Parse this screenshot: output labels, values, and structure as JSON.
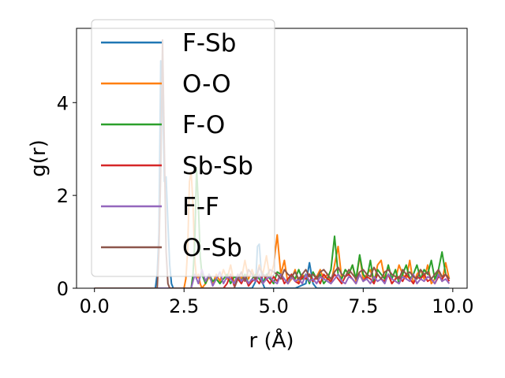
{
  "chart_data": {
    "type": "line",
    "title": "",
    "xlabel": "r (Å)",
    "ylabel": "g(r)",
    "xlim": [
      -0.5,
      10.4
    ],
    "ylim": [
      0,
      5.6
    ],
    "xticks": [
      0.0,
      2.5,
      5.0,
      7.5,
      10.0
    ],
    "xtick_labels": [
      "0.0",
      "2.5",
      "5.0",
      "7.5",
      "10.0"
    ],
    "yticks": [
      0,
      2,
      4
    ],
    "ytick_labels": [
      "0",
      "2",
      "4"
    ],
    "legend_position": "top-left",
    "grid": false,
    "series": [
      {
        "name": "F-Sb",
        "color": "#1f77b4",
        "x": [
          0.0,
          1.7,
          1.75,
          1.8,
          1.85,
          1.9,
          1.95,
          2.0,
          2.05,
          2.1,
          2.15,
          2.2,
          3.5,
          4.4,
          4.5,
          4.55,
          4.6,
          4.65,
          4.7,
          4.75,
          5.6,
          5.9,
          6.0,
          6.1,
          6.2,
          9.9
        ],
        "y": [
          0,
          0,
          0.3,
          1.2,
          4.9,
          4.3,
          2.3,
          2.4,
          1.4,
          0.5,
          0.1,
          0,
          0,
          0,
          0.15,
          0.9,
          0.95,
          0.4,
          0.1,
          0,
          0,
          0.1,
          0.55,
          0.1,
          0,
          0
        ]
      },
      {
        "name": "O-O",
        "color": "#ff7f0e",
        "x": [
          0.0,
          2.5,
          2.55,
          2.6,
          2.65,
          2.7,
          2.75,
          2.8,
          2.85,
          2.9,
          2.95,
          3.0,
          3.1,
          3.2,
          3.3,
          3.4,
          3.5,
          3.6,
          3.7,
          3.8,
          3.9,
          4.0,
          4.1,
          4.2,
          4.3,
          4.4,
          4.5,
          4.6,
          4.7,
          4.8,
          4.9,
          5.0,
          5.1,
          5.2,
          5.3,
          5.4,
          5.5,
          5.6,
          5.7,
          5.8,
          5.9,
          6.0,
          6.1,
          6.2,
          6.3,
          6.4,
          6.5,
          6.6,
          6.7,
          6.8,
          6.9,
          7.0,
          7.1,
          7.2,
          7.3,
          7.4,
          7.5,
          7.6,
          7.7,
          7.8,
          7.9,
          8.0,
          8.1,
          8.2,
          8.3,
          8.4,
          8.5,
          8.6,
          8.7,
          8.8,
          8.9,
          9.0,
          9.1,
          9.2,
          9.3,
          9.4,
          9.5,
          9.6,
          9.7,
          9.8,
          9.9
        ],
        "y": [
          0,
          0,
          0.2,
          0.8,
          2.3,
          2.5,
          1.8,
          0.6,
          0.2,
          0.3,
          0.1,
          0,
          0.1,
          0.25,
          0.1,
          0.3,
          0.15,
          0.4,
          0.2,
          0.5,
          0.1,
          0.3,
          0.2,
          0.6,
          0.2,
          0.4,
          0.15,
          0.5,
          0.3,
          0.7,
          0.2,
          0.5,
          1.15,
          0.3,
          0.6,
          0.1,
          0.2,
          0.4,
          0.1,
          0.3,
          0.2,
          0.3,
          0.15,
          0.25,
          0.4,
          0.2,
          0.3,
          0.1,
          0.5,
          0.9,
          0.2,
          0.4,
          0.3,
          0.5,
          0.15,
          0.7,
          0.2,
          0.3,
          0.4,
          0.1,
          0.5,
          0.6,
          0.2,
          0.3,
          0.1,
          0.2,
          0.5,
          0.3,
          0.2,
          0.6,
          0.1,
          0.3,
          0.4,
          0.2,
          0.5,
          0.1,
          0.2,
          0.35,
          0.15,
          0.55,
          0.2
        ]
      },
      {
        "name": "F-O",
        "color": "#2ca02c",
        "x": [
          0.0,
          2.7,
          2.75,
          2.8,
          2.85,
          2.9,
          2.95,
          3.0,
          3.1,
          3.2,
          3.3,
          3.4,
          3.5,
          3.6,
          3.7,
          3.8,
          3.9,
          4.0,
          4.1,
          4.2,
          4.3,
          4.4,
          4.5,
          4.6,
          4.7,
          4.8,
          4.9,
          5.0,
          5.1,
          5.2,
          5.3,
          5.4,
          5.5,
          5.6,
          5.7,
          5.8,
          5.9,
          6.0,
          6.1,
          6.2,
          6.3,
          6.4,
          6.5,
          6.6,
          6.7,
          6.8,
          6.9,
          7.0,
          7.1,
          7.2,
          7.3,
          7.4,
          7.5,
          7.6,
          7.7,
          7.8,
          7.9,
          8.0,
          8.1,
          8.2,
          8.3,
          8.4,
          8.5,
          8.6,
          8.7,
          8.8,
          8.9,
          9.0,
          9.1,
          9.2,
          9.3,
          9.4,
          9.5,
          9.6,
          9.7,
          9.8,
          9.9
        ],
        "y": [
          0,
          0,
          0.3,
          1.0,
          2.6,
          1.8,
          0.7,
          0.3,
          0.1,
          0.3,
          0.15,
          0.2,
          0.1,
          0.2,
          0.3,
          0.1,
          0.25,
          0.2,
          0.15,
          0.3,
          0.1,
          0.2,
          0.3,
          0.2,
          0.1,
          0.3,
          0.2,
          0.1,
          0.35,
          0.3,
          0.2,
          0.1,
          0.3,
          0.2,
          0.4,
          0.2,
          0.3,
          0.1,
          0.35,
          0.2,
          0.3,
          0.1,
          0.2,
          0.4,
          1.12,
          0.3,
          0.2,
          0.4,
          0.3,
          0.5,
          0.2,
          0.72,
          0.3,
          0.2,
          0.6,
          0.1,
          0.4,
          0.3,
          0.2,
          0.5,
          0.2,
          0.4,
          0.1,
          0.3,
          0.5,
          0.2,
          0.3,
          0.5,
          0.2,
          0.4,
          0.3,
          0.6,
          0.2,
          0.4,
          0.78,
          0.3,
          0.2
        ]
      },
      {
        "name": "Sb-Sb",
        "color": "#d62728",
        "x": [
          0.0,
          3.6,
          3.7,
          3.8,
          3.9,
          4.0,
          4.1,
          4.2,
          4.3,
          4.4,
          4.5,
          4.6,
          4.7,
          4.8,
          4.9,
          5.0,
          5.1,
          5.2,
          5.3,
          5.4,
          5.5,
          5.6,
          5.7,
          5.8,
          5.9,
          6.0,
          6.1,
          6.2,
          6.3,
          6.4,
          6.5,
          6.6,
          6.7,
          6.8,
          6.9,
          7.0,
          7.1,
          7.2,
          7.3,
          7.4,
          7.5,
          7.6,
          7.7,
          7.8,
          7.9,
          8.0,
          8.1,
          8.2,
          8.3,
          8.4,
          8.5,
          8.6,
          8.7,
          8.8,
          8.9,
          9.0,
          9.1,
          9.2,
          9.3,
          9.4,
          9.5,
          9.6,
          9.7,
          9.8,
          9.9
        ],
        "y": [
          0,
          0,
          0.1,
          0.3,
          0.05,
          0.2,
          0.1,
          0.25,
          0.05,
          0.15,
          0.2,
          0.1,
          0.3,
          0.2,
          0.1,
          0.25,
          0.15,
          0.3,
          0.1,
          0.2,
          0.3,
          0.15,
          0.1,
          0.25,
          0.2,
          0.3,
          0.15,
          0.25,
          0.1,
          0.3,
          0.2,
          0.15,
          0.3,
          0.2,
          0.1,
          0.25,
          0.3,
          0.2,
          0.1,
          0.3,
          0.15,
          0.25,
          0.2,
          0.1,
          0.3,
          0.2,
          0.15,
          0.3,
          0.1,
          0.2,
          0.25,
          0.15,
          0.3,
          0.2,
          0.1,
          0.25,
          0.2,
          0.3,
          0.15,
          0.2,
          0.1,
          0.25,
          0.2,
          0.3,
          0.15
        ]
      },
      {
        "name": "F-F",
        "color": "#9467bd",
        "x": [
          0.0,
          2.7,
          2.8,
          2.9,
          3.0,
          3.1,
          3.2,
          3.3,
          3.4,
          3.5,
          3.6,
          3.7,
          3.8,
          3.9,
          4.0,
          4.1,
          4.2,
          4.3,
          4.4,
          4.5,
          4.6,
          4.7,
          4.8,
          4.9,
          5.0,
          5.1,
          5.2,
          5.3,
          5.4,
          5.5,
          5.6,
          5.7,
          5.8,
          5.9,
          6.0,
          6.1,
          6.2,
          6.3,
          6.4,
          6.5,
          6.6,
          6.7,
          6.8,
          6.9,
          7.0,
          7.1,
          7.2,
          7.3,
          7.4,
          7.5,
          7.6,
          7.7,
          7.8,
          7.9,
          8.0,
          8.1,
          8.2,
          8.3,
          8.4,
          8.5,
          8.6,
          8.7,
          8.8,
          8.9,
          9.0,
          9.1,
          9.2,
          9.3,
          9.4,
          9.5,
          9.6,
          9.7,
          9.8,
          9.9
        ],
        "y": [
          0,
          0,
          0.3,
          0.1,
          0.4,
          0.15,
          0.3,
          0.05,
          0.2,
          0.35,
          0.1,
          0.25,
          0.2,
          0.1,
          0.3,
          0.15,
          0.25,
          0.1,
          0.2,
          0.15,
          0.3,
          0.1,
          0.2,
          0.25,
          0.15,
          0.1,
          0.3,
          0.2,
          0.1,
          0.25,
          0.15,
          0.2,
          0.1,
          0.3,
          0.15,
          0.2,
          0.1,
          0.25,
          0.2,
          0.15,
          0.1,
          0.2,
          0.3,
          0.15,
          0.1,
          0.25,
          0.2,
          0.1,
          0.3,
          0.15,
          0.2,
          0.1,
          0.25,
          0.15,
          0.2,
          0.1,
          0.3,
          0.2,
          0.15,
          0.1,
          0.25,
          0.2,
          0.15,
          0.3,
          0.1,
          0.2,
          0.15,
          0.25,
          0.2,
          0.1,
          0.3,
          0.15,
          0.2,
          0.1
        ]
      },
      {
        "name": "O-Sb",
        "color": "#8c564b",
        "x": [
          0.0,
          1.75,
          1.8,
          1.85,
          1.9,
          1.95,
          2.0,
          2.05,
          2.1,
          3.9,
          4.0,
          4.1,
          4.2,
          4.3,
          4.4,
          4.5,
          4.6,
          4.7,
          4.8,
          4.9,
          5.0,
          5.1,
          5.2,
          5.3,
          5.4,
          5.5,
          5.6,
          5.7,
          5.8,
          5.9,
          6.0,
          6.1,
          6.2,
          6.3,
          6.4,
          6.5,
          6.6,
          6.7,
          6.8,
          6.9,
          7.0,
          7.1,
          7.2,
          7.3,
          7.4,
          7.5,
          7.6,
          7.7,
          7.8,
          7.9,
          8.0,
          8.1,
          8.2,
          8.3,
          8.4,
          8.5,
          8.6,
          8.7,
          8.8,
          8.9,
          9.0,
          9.1,
          9.2,
          9.3,
          9.4,
          9.5,
          9.6,
          9.7,
          9.8,
          9.9
        ],
        "y": [
          0,
          0,
          0.8,
          2.5,
          5.35,
          3.0,
          0.8,
          0.1,
          0,
          0,
          0.2,
          0.35,
          0.15,
          0.4,
          0.3,
          0.2,
          0.45,
          0.3,
          0.25,
          0.4,
          0.35,
          0.3,
          0.2,
          0.4,
          0.3,
          0.25,
          0.35,
          0.2,
          0.3,
          0.4,
          0.25,
          0.3,
          0.2,
          0.35,
          0.4,
          0.3,
          0.2,
          0.35,
          0.45,
          0.3,
          0.25,
          0.4,
          0.3,
          0.2,
          0.35,
          0.4,
          0.3,
          0.25,
          0.45,
          0.3,
          0.2,
          0.35,
          0.4,
          0.3,
          0.25,
          0.2,
          0.4,
          0.3,
          0.35,
          0.25,
          0.2,
          0.4,
          0.3,
          0.35,
          0.2,
          0.3,
          0.4,
          0.25,
          0.3,
          0.2
        ]
      }
    ]
  }
}
